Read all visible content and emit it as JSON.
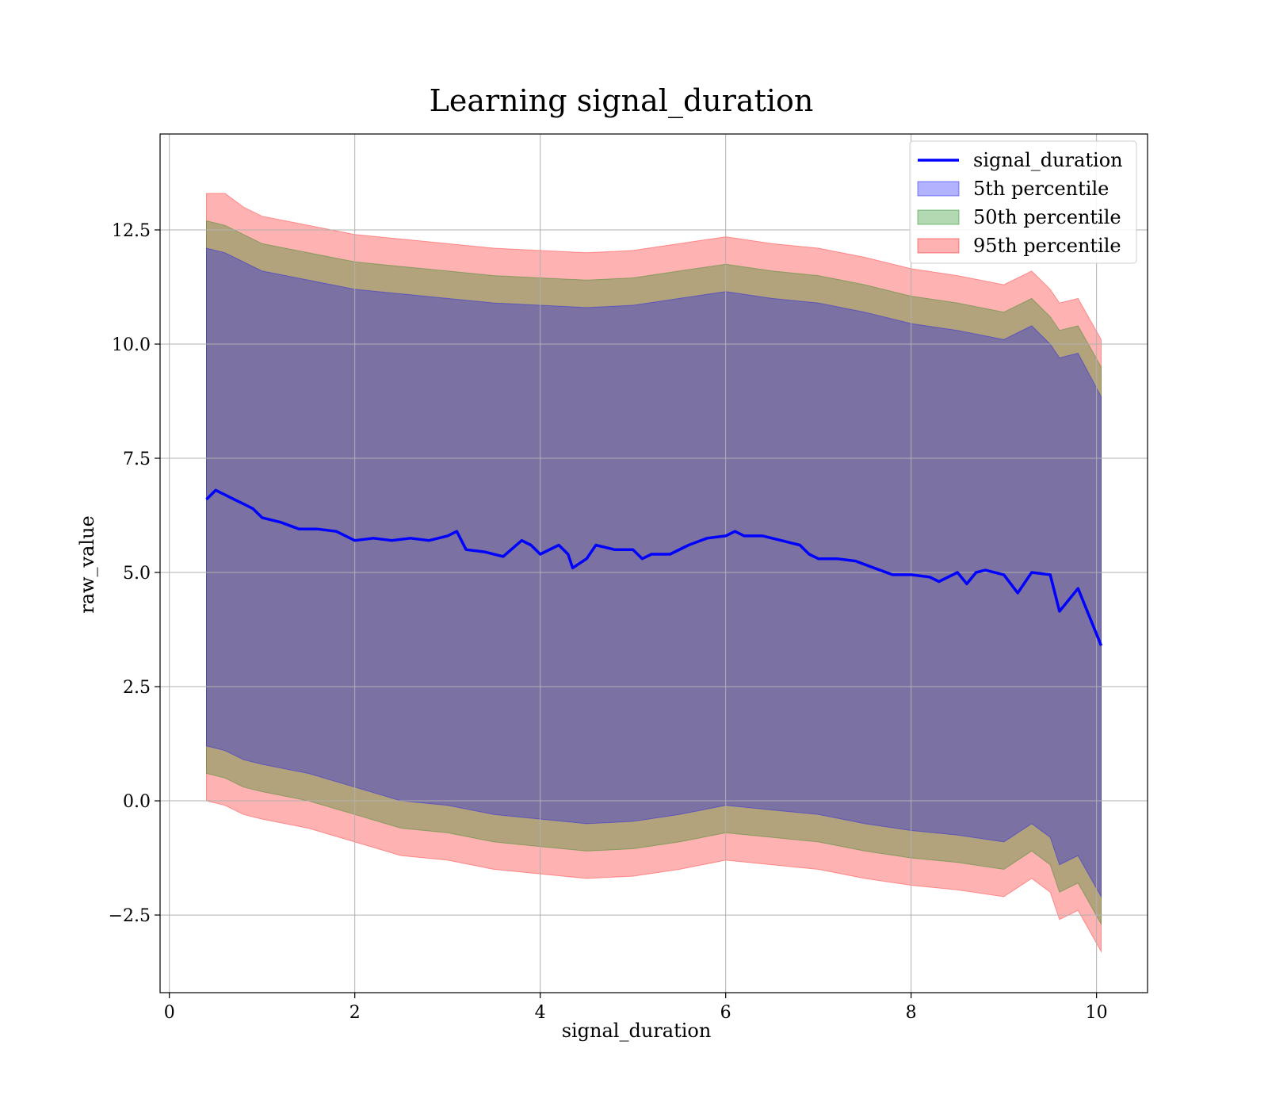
{
  "chart_data": {
    "type": "area",
    "title": "Learning signal_duration",
    "xlabel": "signal_duration",
    "ylabel": "raw_value",
    "xlim": [
      -0.1,
      10.55
    ],
    "ylim": [
      -4.2,
      14.6
    ],
    "xticks": [
      0,
      2,
      4,
      6,
      8,
      10
    ],
    "xtick_labels": [
      "0",
      "2",
      "4",
      "6",
      "8",
      "10"
    ],
    "yticks": [
      -2.5,
      0.0,
      2.5,
      5.0,
      7.5,
      10.0,
      12.5
    ],
    "ytick_labels": [
      "−2.5",
      "0.0",
      "2.5",
      "5.0",
      "7.5",
      "10.0",
      "12.5"
    ],
    "grid": true,
    "legend_position": "top-right",
    "colors": {
      "line": "#0000ff",
      "band_5th": "#0000ff",
      "band_50th": "#008000",
      "band_95th": "#ff0000"
    },
    "line_series": {
      "name": "signal_duration",
      "x": [
        0.4,
        0.5,
        0.6,
        0.7,
        0.8,
        0.9,
        1.0,
        1.2,
        1.4,
        1.6,
        1.8,
        2.0,
        2.2,
        2.4,
        2.6,
        2.8,
        3.0,
        3.1,
        3.2,
        3.4,
        3.6,
        3.8,
        3.9,
        4.0,
        4.2,
        4.3,
        4.35,
        4.5,
        4.6,
        4.8,
        5.0,
        5.1,
        5.2,
        5.4,
        5.6,
        5.8,
        6.0,
        6.1,
        6.2,
        6.4,
        6.6,
        6.8,
        6.9,
        7.0,
        7.2,
        7.4,
        7.6,
        7.8,
        8.0,
        8.2,
        8.3,
        8.5,
        8.6,
        8.7,
        8.8,
        9.0,
        9.15,
        9.3,
        9.5,
        9.6,
        9.8,
        10.05
      ],
      "values": [
        6.6,
        6.8,
        6.7,
        6.6,
        6.5,
        6.4,
        6.2,
        6.1,
        5.95,
        5.95,
        5.9,
        5.7,
        5.75,
        5.7,
        5.75,
        5.7,
        5.8,
        5.9,
        5.5,
        5.45,
        5.35,
        5.7,
        5.6,
        5.4,
        5.6,
        5.4,
        5.1,
        5.3,
        5.6,
        5.5,
        5.5,
        5.3,
        5.4,
        5.4,
        5.6,
        5.75,
        5.8,
        5.9,
        5.8,
        5.8,
        5.7,
        5.6,
        5.4,
        5.3,
        5.3,
        5.25,
        5.1,
        4.95,
        4.95,
        4.9,
        4.8,
        5.0,
        4.75,
        5.0,
        5.05,
        4.95,
        4.55,
        5.0,
        4.95,
        4.15,
        4.65,
        3.4
      ]
    },
    "bands": [
      {
        "name": "5th percentile",
        "x": [
          0.4,
          0.6,
          0.8,
          1.0,
          1.5,
          2.0,
          2.5,
          3.0,
          3.5,
          4.0,
          4.5,
          5.0,
          5.5,
          6.0,
          6.5,
          7.0,
          7.5,
          8.0,
          8.5,
          9.0,
          9.3,
          9.5,
          9.6,
          9.8,
          10.05
        ],
        "upper": [
          12.1,
          12.0,
          11.8,
          11.6,
          11.4,
          11.2,
          11.1,
          11.0,
          10.9,
          10.85,
          10.8,
          10.85,
          11.0,
          11.15,
          11.0,
          10.9,
          10.7,
          10.45,
          10.3,
          10.1,
          10.4,
          10.0,
          9.7,
          9.8,
          8.85
        ],
        "lower": [
          1.2,
          1.1,
          0.9,
          0.8,
          0.6,
          0.3,
          0.0,
          -0.1,
          -0.3,
          -0.4,
          -0.5,
          -0.45,
          -0.3,
          -0.1,
          -0.2,
          -0.3,
          -0.5,
          -0.65,
          -0.75,
          -0.9,
          -0.5,
          -0.8,
          -1.4,
          -1.2,
          -2.1
        ]
      },
      {
        "name": "50th percentile",
        "x": [
          0.4,
          0.6,
          0.8,
          1.0,
          1.5,
          2.0,
          2.5,
          3.0,
          3.5,
          4.0,
          4.5,
          5.0,
          5.5,
          6.0,
          6.5,
          7.0,
          7.5,
          8.0,
          8.5,
          9.0,
          9.3,
          9.5,
          9.6,
          9.8,
          10.05
        ],
        "upper": [
          12.7,
          12.6,
          12.4,
          12.2,
          12.0,
          11.8,
          11.7,
          11.6,
          11.5,
          11.45,
          11.4,
          11.45,
          11.6,
          11.75,
          11.6,
          11.5,
          11.3,
          11.05,
          10.9,
          10.7,
          11.0,
          10.6,
          10.3,
          10.4,
          9.5
        ],
        "lower": [
          0.6,
          0.5,
          0.3,
          0.2,
          0.0,
          -0.3,
          -0.6,
          -0.7,
          -0.9,
          -1.0,
          -1.1,
          -1.05,
          -0.9,
          -0.7,
          -0.8,
          -0.9,
          -1.1,
          -1.25,
          -1.35,
          -1.5,
          -1.1,
          -1.4,
          -2.0,
          -1.8,
          -2.7
        ]
      },
      {
        "name": "95th percentile",
        "x": [
          0.4,
          0.6,
          0.8,
          1.0,
          1.5,
          2.0,
          2.5,
          3.0,
          3.5,
          4.0,
          4.5,
          5.0,
          5.5,
          6.0,
          6.5,
          7.0,
          7.5,
          8.0,
          8.5,
          9.0,
          9.3,
          9.5,
          9.6,
          9.8,
          10.05
        ],
        "upper": [
          13.3,
          13.3,
          13.0,
          12.8,
          12.6,
          12.4,
          12.3,
          12.2,
          12.1,
          12.05,
          12.0,
          12.05,
          12.2,
          12.35,
          12.2,
          12.1,
          11.9,
          11.65,
          11.5,
          11.3,
          11.6,
          11.2,
          10.9,
          11.0,
          10.1
        ],
        "lower": [
          0.0,
          -0.1,
          -0.3,
          -0.4,
          -0.6,
          -0.9,
          -1.2,
          -1.3,
          -1.5,
          -1.6,
          -1.7,
          -1.65,
          -1.5,
          -1.3,
          -1.4,
          -1.5,
          -1.7,
          -1.85,
          -1.95,
          -2.1,
          -1.7,
          -2.0,
          -2.6,
          -2.4,
          -3.3
        ]
      }
    ]
  }
}
